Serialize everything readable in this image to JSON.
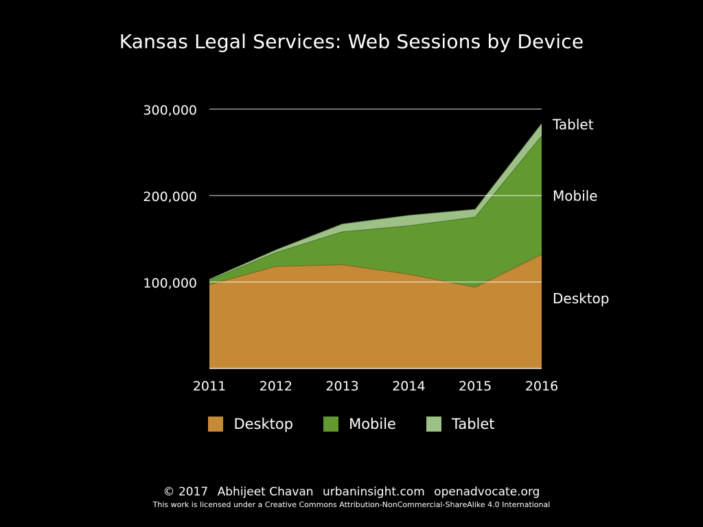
{
  "slide": {
    "title": "Kansas Legal Services: Web Sessions by Device",
    "footer": {
      "copyright": "© 2017",
      "author": "Abhijeet Chavan",
      "site1": "urbaninsight.com",
      "site2": "openadvocate.org",
      "license": "This work is licensed under a Creative Commons Attribution-NonCommercial-ShareAlike 4.0 International"
    }
  },
  "chart_data": {
    "type": "area",
    "stacked": true,
    "title": "Kansas Legal Services: Web Sessions by Device",
    "xlabel": "",
    "ylabel": "",
    "categories": [
      "2011",
      "2012",
      "2013",
      "2014",
      "2015",
      "2016"
    ],
    "series": [
      {
        "name": "Desktop",
        "color": "#c68a36",
        "values": [
          97000,
          118000,
          120000,
          109000,
          94000,
          132000
        ]
      },
      {
        "name": "Mobile",
        "color": "#629a31",
        "values": [
          5000,
          16000,
          38000,
          56000,
          81000,
          137000
        ]
      },
      {
        "name": "Tablet",
        "color": "#9cc085",
        "values": [
          1000,
          3000,
          9000,
          12000,
          9000,
          14000
        ]
      }
    ],
    "ylim": [
      0,
      300000
    ],
    "yticks": [
      100000,
      200000,
      300000
    ],
    "ytick_labels": [
      "100,000",
      "200,000",
      "300,000"
    ],
    "grid": true,
    "legend": {
      "placement": "bottom",
      "entries": [
        "Desktop",
        "Mobile",
        "Tablet"
      ]
    },
    "series_labels": [
      "Tablet",
      "Mobile",
      "Desktop"
    ],
    "series_label_positions": "right"
  }
}
